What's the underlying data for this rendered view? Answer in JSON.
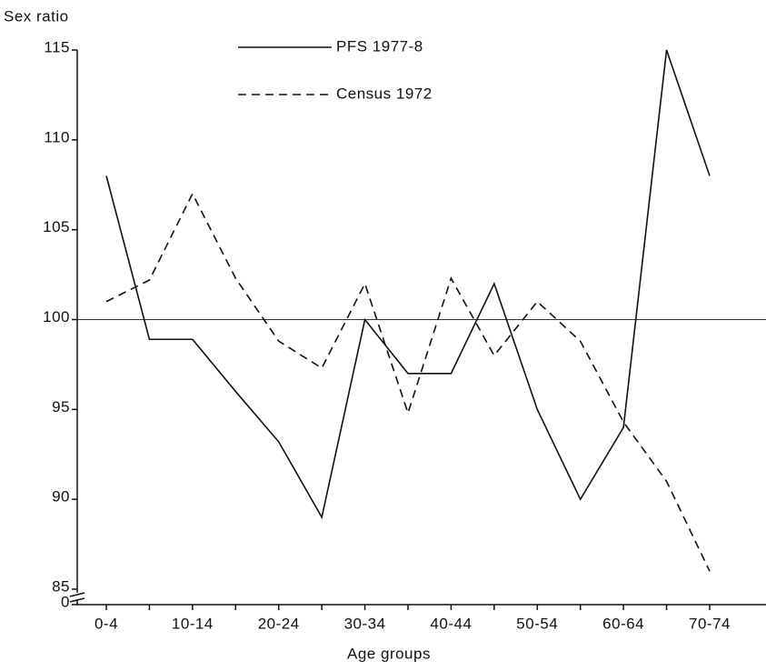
{
  "chart_data": {
    "type": "line",
    "y_label": "Sex ratio",
    "x_label": "Age groups",
    "categories": [
      "0-4",
      null,
      "10-14",
      null,
      "20-24",
      null,
      "30-34",
      null,
      "40-44",
      null,
      "50-54",
      null,
      "60-64",
      null,
      "70-74"
    ],
    "series": [
      {
        "name": "PFS 1977-8",
        "color": "#111111",
        "dash": false,
        "values": [
          108,
          98.9,
          98.9,
          96,
          93.2,
          89,
          100,
          97,
          97,
          102,
          95,
          90,
          94,
          115,
          108
        ]
      },
      {
        "name": "Census 1972",
        "color": "#111111",
        "dash": true,
        "values": [
          101,
          102.2,
          107,
          102.3,
          98.8,
          97.3,
          102,
          94.8,
          102.3,
          98,
          101,
          98.8,
          94.3,
          91,
          86
        ]
      }
    ],
    "ylim": [
      85,
      115
    ],
    "yticks": [
      0,
      85,
      90,
      95,
      100,
      105,
      110,
      115
    ],
    "axis_break": true,
    "hline": 100,
    "grid": false,
    "legend": "top"
  }
}
